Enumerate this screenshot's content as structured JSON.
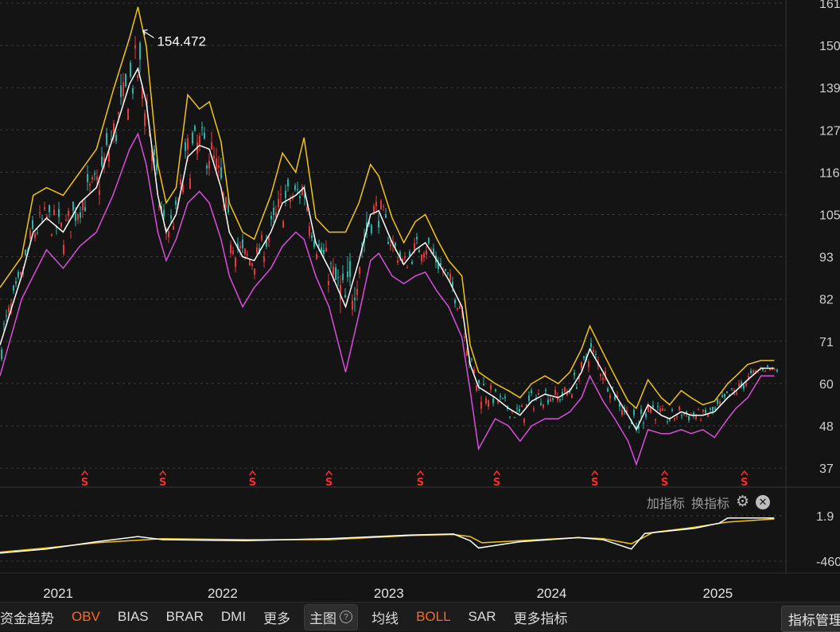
{
  "chart_data": [
    {
      "type": "line",
      "title": "",
      "y_ticks": [
        "161",
        "150",
        "139",
        "127",
        "116",
        "105",
        "93",
        "82",
        "71",
        "60",
        "48",
        "37"
      ],
      "ylim": [
        32,
        162
      ],
      "x_ticks": [
        "2021",
        "2022",
        "2023",
        "2024",
        "2025"
      ],
      "xlim": [
        2020.72,
        2025.45
      ],
      "annotation": {
        "label": "154.472",
        "x": 2021.56,
        "y": 154.472
      },
      "series": [
        {
          "color": "#f0c419",
          "points": [
            [
              2020.72,
              85
            ],
            [
              2020.85,
              93
            ],
            [
              2020.92,
              110
            ],
            [
              2021.0,
              112
            ],
            [
              2021.1,
              110
            ],
            [
              2021.2,
              116
            ],
            [
              2021.3,
              122
            ],
            [
              2021.4,
              138
            ],
            [
              2021.5,
              152
            ],
            [
              2021.55,
              160
            ],
            [
              2021.6,
              150
            ],
            [
              2021.67,
              118
            ],
            [
              2021.72,
              108
            ],
            [
              2021.78,
              112
            ],
            [
              2021.85,
              137
            ],
            [
              2021.92,
              133
            ],
            [
              2021.98,
              135
            ],
            [
              2022.05,
              124
            ],
            [
              2022.1,
              108
            ],
            [
              2022.18,
              100
            ],
            [
              2022.25,
              98
            ],
            [
              2022.35,
              110
            ],
            [
              2022.42,
              121
            ],
            [
              2022.5,
              116
            ],
            [
              2022.55,
              125
            ],
            [
              2022.62,
              104
            ],
            [
              2022.7,
              100
            ],
            [
              2022.8,
              100
            ],
            [
              2022.88,
              108
            ],
            [
              2022.95,
              118
            ],
            [
              2023.0,
              115
            ],
            [
              2023.08,
              104
            ],
            [
              2023.15,
              97
            ],
            [
              2023.22,
              103
            ],
            [
              2023.28,
              105
            ],
            [
              2023.35,
              98
            ],
            [
              2023.42,
              92
            ],
            [
              2023.5,
              88
            ],
            [
              2023.55,
              70
            ],
            [
              2023.6,
              63
            ],
            [
              2023.7,
              60
            ],
            [
              2023.78,
              58
            ],
            [
              2023.85,
              56
            ],
            [
              2023.92,
              60
            ],
            [
              2024.0,
              62
            ],
            [
              2024.08,
              60
            ],
            [
              2024.15,
              63
            ],
            [
              2024.22,
              69
            ],
            [
              2024.27,
              75
            ],
            [
              2024.35,
              68
            ],
            [
              2024.42,
              62
            ],
            [
              2024.5,
              55
            ],
            [
              2024.55,
              53
            ],
            [
              2024.62,
              61
            ],
            [
              2024.7,
              56
            ],
            [
              2024.75,
              54
            ],
            [
              2024.82,
              58
            ],
            [
              2024.88,
              56
            ],
            [
              2024.95,
              54
            ],
            [
              2025.02,
              55
            ],
            [
              2025.1,
              60
            ],
            [
              2025.15,
              62
            ],
            [
              2025.22,
              65
            ],
            [
              2025.3,
              66
            ],
            [
              2025.38,
              66
            ]
          ]
        },
        {
          "color": "#ffffff",
          "points": [
            [
              2020.72,
              70
            ],
            [
              2020.85,
              88
            ],
            [
              2020.92,
              100
            ],
            [
              2021.0,
              104
            ],
            [
              2021.1,
              100
            ],
            [
              2021.2,
              108
            ],
            [
              2021.3,
              112
            ],
            [
              2021.4,
              125
            ],
            [
              2021.5,
              140
            ],
            [
              2021.55,
              144
            ],
            [
              2021.6,
              135
            ],
            [
              2021.67,
              110
            ],
            [
              2021.72,
              100
            ],
            [
              2021.78,
              105
            ],
            [
              2021.85,
              120
            ],
            [
              2021.92,
              123
            ],
            [
              2021.98,
              122
            ],
            [
              2022.05,
              112
            ],
            [
              2022.1,
              100
            ],
            [
              2022.18,
              93
            ],
            [
              2022.25,
              92
            ],
            [
              2022.35,
              100
            ],
            [
              2022.42,
              108
            ],
            [
              2022.5,
              110
            ],
            [
              2022.55,
              112
            ],
            [
              2022.62,
              97
            ],
            [
              2022.7,
              90
            ],
            [
              2022.8,
              80
            ],
            [
              2022.88,
              92
            ],
            [
              2022.95,
              105
            ],
            [
              2023.0,
              106
            ],
            [
              2023.08,
              97
            ],
            [
              2023.15,
              91
            ],
            [
              2023.22,
              95
            ],
            [
              2023.28,
              97
            ],
            [
              2023.35,
              92
            ],
            [
              2023.42,
              87
            ],
            [
              2023.5,
              80
            ],
            [
              2023.55,
              65
            ],
            [
              2023.6,
              59
            ],
            [
              2023.7,
              56
            ],
            [
              2023.78,
              53
            ],
            [
              2023.85,
              51
            ],
            [
              2023.92,
              55
            ],
            [
              2024.0,
              57
            ],
            [
              2024.08,
              56
            ],
            [
              2024.15,
              58
            ],
            [
              2024.22,
              63
            ],
            [
              2024.27,
              69
            ],
            [
              2024.35,
              63
            ],
            [
              2024.42,
              57
            ],
            [
              2024.5,
              51
            ],
            [
              2024.55,
              47
            ],
            [
              2024.62,
              54
            ],
            [
              2024.7,
              51
            ],
            [
              2024.75,
              50
            ],
            [
              2024.82,
              52
            ],
            [
              2024.88,
              51
            ],
            [
              2024.95,
              51
            ],
            [
              2025.02,
              52
            ],
            [
              2025.1,
              56
            ],
            [
              2025.15,
              58
            ],
            [
              2025.22,
              61
            ],
            [
              2025.3,
              64
            ],
            [
              2025.38,
              64
            ]
          ]
        },
        {
          "color": "#d84ed8",
          "points": [
            [
              2020.72,
              62
            ],
            [
              2020.85,
              82
            ],
            [
              2020.92,
              88
            ],
            [
              2021.0,
              95
            ],
            [
              2021.1,
              90
            ],
            [
              2021.2,
              96
            ],
            [
              2021.3,
              100
            ],
            [
              2021.4,
              110
            ],
            [
              2021.5,
              122
            ],
            [
              2021.55,
              126
            ],
            [
              2021.6,
              118
            ],
            [
              2021.67,
              100
            ],
            [
              2021.72,
              92
            ],
            [
              2021.78,
              98
            ],
            [
              2021.85,
              108
            ],
            [
              2021.92,
              111
            ],
            [
              2021.98,
              108
            ],
            [
              2022.05,
              98
            ],
            [
              2022.1,
              88
            ],
            [
              2022.18,
              80
            ],
            [
              2022.25,
              85
            ],
            [
              2022.35,
              90
            ],
            [
              2022.42,
              96
            ],
            [
              2022.5,
              100
            ],
            [
              2022.55,
              98
            ],
            [
              2022.62,
              88
            ],
            [
              2022.7,
              80
            ],
            [
              2022.8,
              63
            ],
            [
              2022.88,
              78
            ],
            [
              2022.95,
              92
            ],
            [
              2023.0,
              94
            ],
            [
              2023.08,
              88
            ],
            [
              2023.15,
              86
            ],
            [
              2023.22,
              88
            ],
            [
              2023.28,
              89
            ],
            [
              2023.35,
              84
            ],
            [
              2023.42,
              80
            ],
            [
              2023.5,
              72
            ],
            [
              2023.55,
              58
            ],
            [
              2023.6,
              42
            ],
            [
              2023.7,
              50
            ],
            [
              2023.78,
              48
            ],
            [
              2023.85,
              44
            ],
            [
              2023.92,
              48
            ],
            [
              2024.0,
              50
            ],
            [
              2024.08,
              50
            ],
            [
              2024.15,
              52
            ],
            [
              2024.22,
              56
            ],
            [
              2024.27,
              62
            ],
            [
              2024.35,
              55
            ],
            [
              2024.42,
              50
            ],
            [
              2024.5,
              44
            ],
            [
              2024.55,
              38
            ],
            [
              2024.62,
              47
            ],
            [
              2024.7,
              46
            ],
            [
              2024.75,
              46
            ],
            [
              2024.82,
              47
            ],
            [
              2024.88,
              46
            ],
            [
              2024.95,
              47
            ],
            [
              2025.02,
              45
            ],
            [
              2025.1,
              50
            ],
            [
              2025.15,
              53
            ],
            [
              2025.22,
              56
            ],
            [
              2025.3,
              62
            ],
            [
              2025.38,
              62
            ]
          ]
        }
      ],
      "signal_label": "S",
      "signal_x": [
        2021.23,
        2021.7,
        2022.24,
        2022.7,
        2023.25,
        2023.71,
        2024.3,
        2024.72,
        2025.2
      ],
      "signal_color": "#ff2a2a"
    },
    {
      "type": "line",
      "title": "",
      "y_ticks": [
        "1.9",
        "-460"
      ],
      "series": [
        {
          "color": "#f0c419",
          "points": [
            [
              2020.72,
              -120
            ],
            [
              2021.0,
              -80
            ],
            [
              2021.3,
              -30
            ],
            [
              2021.7,
              10
            ],
            [
              2022.2,
              0
            ],
            [
              2022.7,
              0
            ],
            [
              2023.2,
              40
            ],
            [
              2023.45,
              50
            ],
            [
              2023.55,
              30
            ],
            [
              2023.62,
              -30
            ],
            [
              2023.85,
              -10
            ],
            [
              2024.2,
              20
            ],
            [
              2024.35,
              10
            ],
            [
              2024.52,
              -40
            ],
            [
              2024.65,
              70
            ],
            [
              2024.9,
              120
            ],
            [
              2025.1,
              170
            ],
            [
              2025.38,
              200
            ]
          ]
        },
        {
          "color": "#ffffff",
          "points": [
            [
              2020.72,
              -130
            ],
            [
              2021.0,
              -90
            ],
            [
              2021.3,
              -20
            ],
            [
              2021.55,
              30
            ],
            [
              2021.7,
              0
            ],
            [
              2022.2,
              -10
            ],
            [
              2022.7,
              10
            ],
            [
              2023.2,
              45
            ],
            [
              2023.45,
              55
            ],
            [
              2023.55,
              -10
            ],
            [
              2023.6,
              -80
            ],
            [
              2023.85,
              -20
            ],
            [
              2024.2,
              20
            ],
            [
              2024.35,
              0
            ],
            [
              2024.52,
              -90
            ],
            [
              2024.6,
              60
            ],
            [
              2024.9,
              110
            ],
            [
              2025.05,
              160
            ],
            [
              2025.1,
              210
            ],
            [
              2025.38,
              210
            ]
          ]
        }
      ]
    }
  ],
  "panel_tools": {
    "add_label": "加指标",
    "swap_label": "换指标"
  },
  "bottom_bar": {
    "items": [
      "资金趋势",
      "OBV",
      "BIAS",
      "BRAR",
      "DMI",
      "更多"
    ],
    "main_label": "主图",
    "main_items": [
      "均线",
      "BOLL",
      "SAR",
      "更多指标"
    ],
    "highlight": [
      "OBV",
      "BOLL"
    ],
    "manage_label": "指标管理",
    "highlight_color": "#ff6a1a"
  }
}
